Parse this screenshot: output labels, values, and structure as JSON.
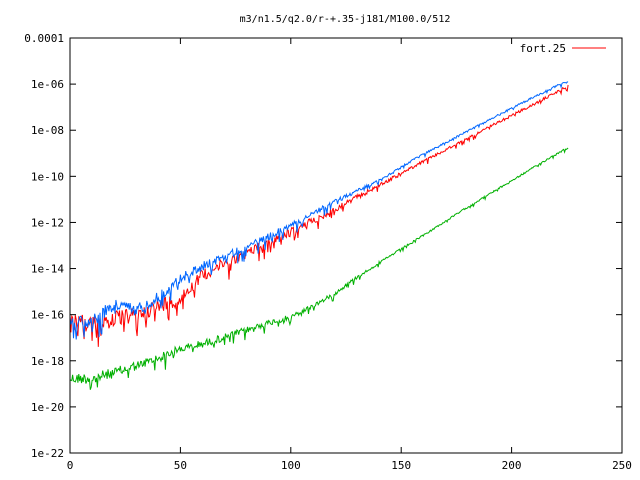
{
  "chart_data": {
    "type": "line",
    "title": "m3/n1.5/q2.0/r-+.35-j181/M100.0/512",
    "xlabel": "",
    "ylabel": "",
    "xlim": [
      0,
      250
    ],
    "ylim": [
      1e-22,
      0.0001
    ],
    "yscale": "log",
    "grid": false,
    "legend_position": "top-right",
    "x_ticks": [
      0,
      50,
      100,
      150,
      200,
      250
    ],
    "x_tick_labels": [
      "0",
      "50",
      "100",
      "150",
      "200",
      "250"
    ],
    "y_ticks": [
      1e-22,
      1e-20,
      1e-18,
      1e-16,
      1e-14,
      1e-12,
      1e-10,
      1e-08,
      1e-06,
      0.0001
    ],
    "y_tick_labels": [
      "1e-22",
      "1e-20",
      "1e-18",
      "1e-16",
      "1e-14",
      "1e-12",
      "1e-10",
      "1e-08",
      "1e-06",
      "0.0001"
    ],
    "legend": [
      {
        "label": "fort.25",
        "color": "#ff0000"
      }
    ],
    "series": [
      {
        "color": "#0066ff",
        "x": [
          0,
          10,
          20,
          30,
          40,
          50,
          60,
          70,
          80,
          100,
          120,
          140,
          160,
          180,
          200,
          210,
          220,
          226
        ],
        "y": [
          1e-16,
          1e-16,
          5e-16,
          3e-16,
          1e-15,
          6e-15,
          2e-14,
          5e-14,
          1.2e-13,
          1e-12,
          1e-11,
          8e-11,
          1e-09,
          1e-08,
          1e-07,
          3e-07,
          9e-07,
          1.5e-06
        ],
        "noise": 0.6
      },
      {
        "color": "#ff0000",
        "x": [
          0,
          10,
          20,
          30,
          40,
          50,
          60,
          70,
          80,
          100,
          120,
          140,
          160,
          180,
          200,
          210,
          220,
          226
        ],
        "y": [
          1e-16,
          1e-16,
          1.5e-16,
          2e-16,
          5e-16,
          1e-15,
          1e-14,
          3e-14,
          8e-14,
          6e-13,
          5e-12,
          5e-11,
          5e-10,
          5e-09,
          5e-08,
          1.5e-07,
          5e-07,
          1e-06
        ],
        "noise": 0.8
      },
      {
        "color": "#00b000",
        "x": [
          0,
          10,
          20,
          30,
          40,
          50,
          60,
          70,
          80,
          90,
          100,
          110,
          120,
          130,
          140,
          160,
          180,
          200,
          220,
          226
        ],
        "y": [
          3e-19,
          3e-19,
          5e-19,
          1e-18,
          2e-18,
          5e-18,
          8e-18,
          1.5e-17,
          3e-17,
          6e-17,
          1e-16,
          3e-16,
          1e-15,
          5e-15,
          2e-14,
          3e-13,
          5e-12,
          7e-11,
          1e-09,
          2e-09
        ],
        "noise": 0.5
      }
    ]
  }
}
